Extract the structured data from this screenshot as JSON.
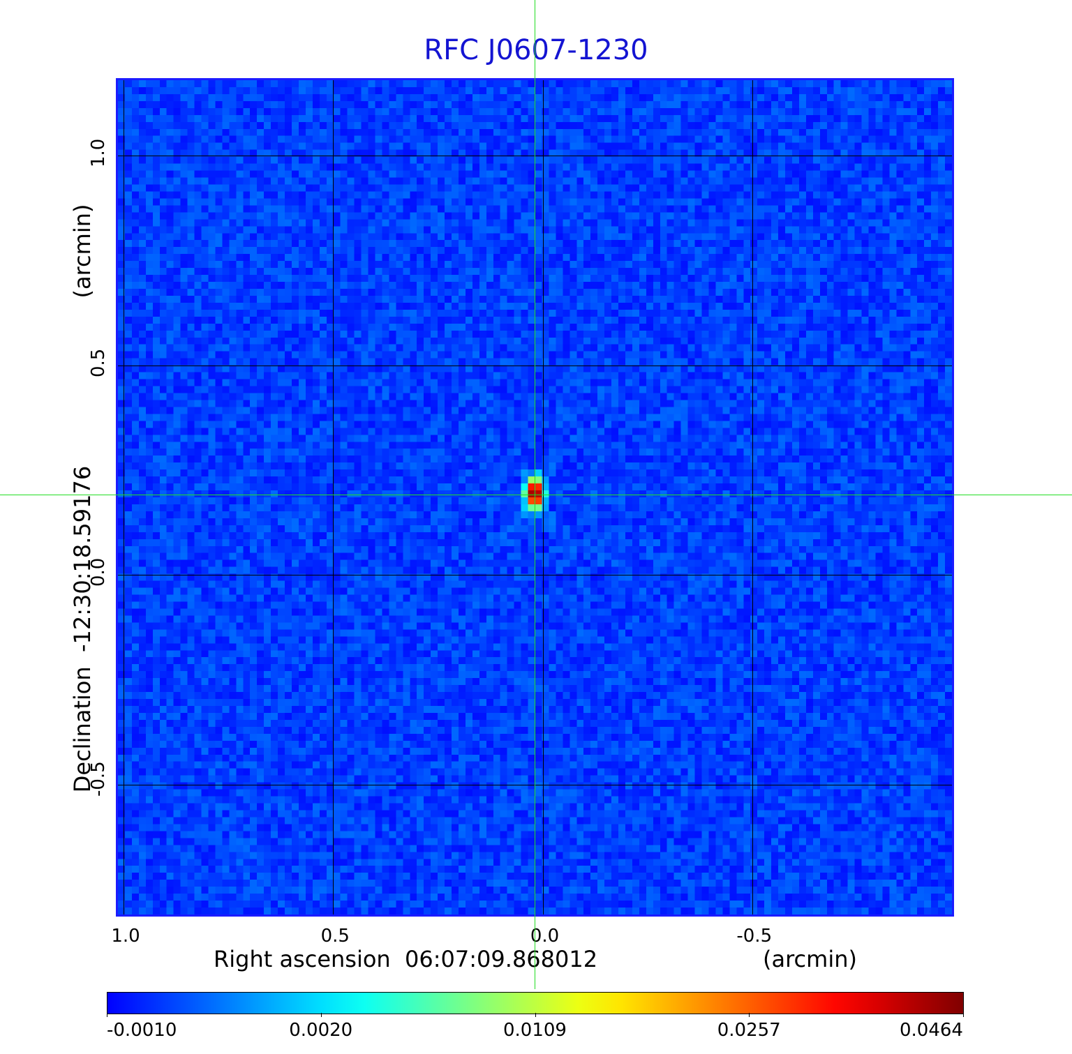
{
  "chart_data": {
    "type": "heatmap",
    "title": "RFC J0607-1230",
    "xlabel": "Right ascension  06:07:09.868012",
    "xunit": "(arcmin)",
    "ylabel": "Declination  -12:30:18.59176",
    "yunit": "(arcmin)",
    "x_ticks": [
      1.0,
      0.5,
      0.0,
      -0.5
    ],
    "x_tick_labels": [
      "1.0",
      "0.5",
      "0.0",
      "-0.5"
    ],
    "y_ticks": [
      1.0,
      0.5,
      0.0,
      -0.5
    ],
    "y_tick_labels": [
      "1.0",
      "0.5",
      "0.0",
      "-0.5"
    ],
    "xlim": [
      1.0,
      -1.0
    ],
    "ylim": [
      -0.82,
      1.18
    ],
    "grid": true,
    "colormap": "jet",
    "colorbar": {
      "ticks": [
        "-0.0010",
        "0.0020",
        "0.0109",
        "0.0257",
        "0.0464"
      ],
      "min": -0.001,
      "max": 0.0464
    },
    "peak": {
      "x": 0.0,
      "y": 0.19,
      "value": 0.0464
    },
    "crosshair": {
      "x": 0.0,
      "y": 0.19
    },
    "colors": {
      "title": "#1414d2",
      "frame": "#1c1cff",
      "crosshair": "#22dd22"
    }
  }
}
